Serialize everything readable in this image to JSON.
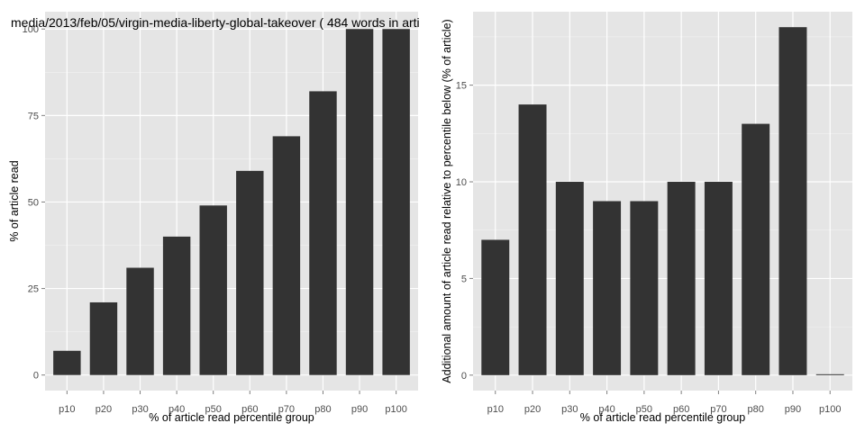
{
  "chart_data": [
    {
      "type": "bar",
      "title": "media/2013/feb/05/virgin-media-liberty-global-takeover ( 484 words in arti",
      "xlabel": "% of article read percentile group",
      "ylabel": "% of article read",
      "categories": [
        "p10",
        "p20",
        "p30",
        "p40",
        "p50",
        "p60",
        "p70",
        "p80",
        "p90",
        "p100"
      ],
      "values": [
        7,
        21,
        31,
        40,
        49,
        59,
        69,
        82,
        100,
        100
      ],
      "ylim": [
        -4.5,
        105
      ],
      "yticks": [
        0,
        25,
        50,
        75,
        100
      ],
      "grid": true,
      "legend": "none"
    },
    {
      "type": "bar",
      "title": "",
      "xlabel": "% of article read percentile group",
      "ylabel": "Additional amount of article read relative to percentile below (% of article)",
      "categories": [
        "p10",
        "p20",
        "p30",
        "p40",
        "p50",
        "p60",
        "p70",
        "p80",
        "p90",
        "p100"
      ],
      "values": [
        7,
        14,
        10,
        9,
        9,
        10,
        10,
        13,
        18,
        0
      ],
      "ylim": [
        -0.8,
        18.8
      ],
      "yticks": [
        0,
        5,
        10,
        15
      ],
      "grid": true,
      "legend": "none"
    }
  ],
  "colors": {
    "panel_bg": "#e5e5e5",
    "grid_major": "#ffffff",
    "grid_minor": "#f2f2f2",
    "bar_fill": "#333333"
  }
}
